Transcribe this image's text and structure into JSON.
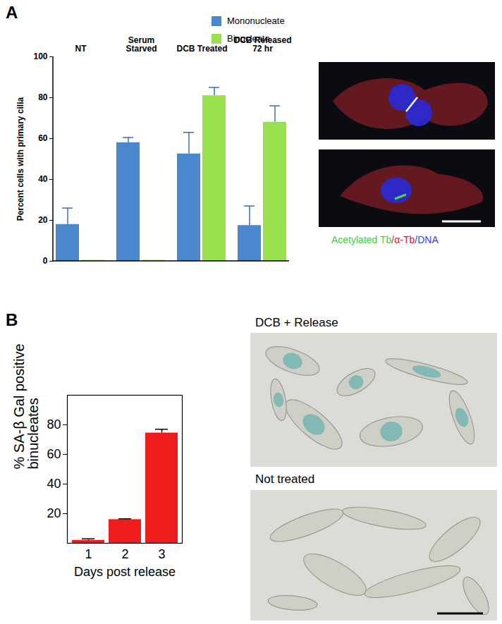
{
  "chart_data": [
    {
      "type": "bar",
      "panel": "A",
      "ylabel": "Percent cells with primary cilia",
      "categories": [
        "NT",
        "Serum Starved",
        "DCB Treated",
        "DCB Released 72 hr"
      ],
      "series": [
        {
          "name": "Mononucleate",
          "color": "#4a87cc",
          "values": [
            18,
            58,
            52.5,
            17.5
          ],
          "errors": [
            8,
            2.5,
            10.5,
            9.5
          ]
        },
        {
          "name": "Binucleate",
          "color": "#99e04c",
          "values": [
            0.5,
            0.5,
            81,
            68
          ],
          "errors": [
            null,
            null,
            4,
            8
          ]
        }
      ],
      "ylim": [
        0,
        100
      ],
      "yticks": [
        0,
        20,
        40,
        60,
        80,
        100
      ],
      "legend": "top-right",
      "image_caption": [
        {
          "text": "Acetylated Tb",
          "color": "#3ecf3e"
        },
        {
          "text": "/α-Tb",
          "color": "#e02020"
        },
        {
          "text": "/DNA",
          "color": "#3a3aff"
        }
      ]
    },
    {
      "type": "bar",
      "panel": "B",
      "ylabel": "% SA-β Gal positive binucleates",
      "xlabel": "Days post release",
      "categories": [
        "1",
        "2",
        "3"
      ],
      "values": [
        2,
        16,
        74.5
      ],
      "errors": [
        1,
        0.5,
        2.5
      ],
      "color": "#ee1c1c",
      "ylim": [
        0,
        100
      ],
      "yticks": [
        20,
        40,
        60,
        80
      ],
      "image_labels": [
        "DCB + Release",
        "Not treated"
      ]
    }
  ]
}
